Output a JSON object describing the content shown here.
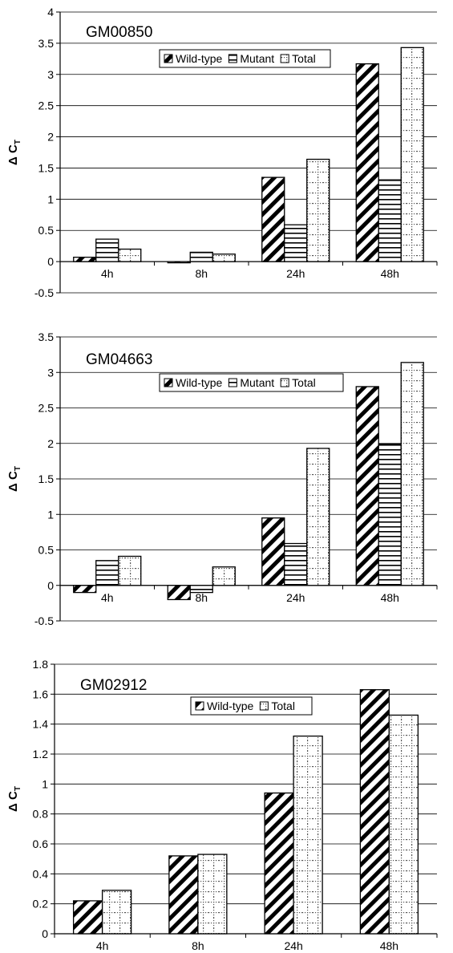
{
  "chart_data": [
    {
      "type": "bar",
      "title": "GM00850",
      "ylabel_main": "Δ C",
      "ylabel_sub": "T",
      "categories": [
        "4h",
        "8h",
        "24h",
        "48h"
      ],
      "ylim": [
        -0.5,
        4
      ],
      "yticks": [
        "-0.5",
        "0",
        "0.5",
        "1",
        "1.5",
        "2",
        "2.5",
        "3",
        "3.5",
        "4"
      ],
      "grid": true,
      "legend_position": "top-center",
      "series": [
        {
          "name": "Wild-type",
          "pattern": "diagonal",
          "values": [
            0.07,
            -0.01,
            1.35,
            3.17
          ]
        },
        {
          "name": "Mutant",
          "pattern": "horizontal",
          "values": [
            0.36,
            0.15,
            0.59,
            1.31
          ]
        },
        {
          "name": "Total",
          "pattern": "dotted",
          "values": [
            0.2,
            0.12,
            1.64,
            3.43
          ]
        }
      ]
    },
    {
      "type": "bar",
      "title": "GM04663",
      "ylabel_main": "Δ C",
      "ylabel_sub": "T",
      "categories": [
        "4h",
        "8h",
        "24h",
        "48h"
      ],
      "ylim": [
        -0.5,
        3.5
      ],
      "yticks": [
        "-0.5",
        "0",
        "0.5",
        "1",
        "1.5",
        "2",
        "2.5",
        "3",
        "3.5"
      ],
      "grid": true,
      "legend_position": "top-center",
      "series": [
        {
          "name": "Wild-type",
          "pattern": "diagonal",
          "values": [
            -0.1,
            -0.2,
            0.95,
            2.8
          ]
        },
        {
          "name": "Mutant",
          "pattern": "horizontal",
          "values": [
            0.35,
            -0.1,
            0.59,
            1.99
          ]
        },
        {
          "name": "Total",
          "pattern": "dotted",
          "values": [
            0.41,
            0.26,
            1.93,
            3.14
          ]
        }
      ]
    },
    {
      "type": "bar",
      "title": "GM02912",
      "ylabel_main": "Δ C",
      "ylabel_sub": "T",
      "categories": [
        "4h",
        "8h",
        "24h",
        "48h"
      ],
      "ylim": [
        0,
        1.8
      ],
      "yticks": [
        "0",
        "0.2",
        "0.4",
        "0.6",
        "0.8",
        "1",
        "1.2",
        "1.4",
        "1.6",
        "1.8"
      ],
      "grid": true,
      "legend_position": "top-center",
      "series": [
        {
          "name": "Wild-type",
          "pattern": "diagonal",
          "values": [
            0.22,
            0.52,
            0.94,
            1.63
          ]
        },
        {
          "name": "Total",
          "pattern": "dotted",
          "values": [
            0.29,
            0.53,
            1.32,
            1.46
          ]
        }
      ]
    }
  ]
}
